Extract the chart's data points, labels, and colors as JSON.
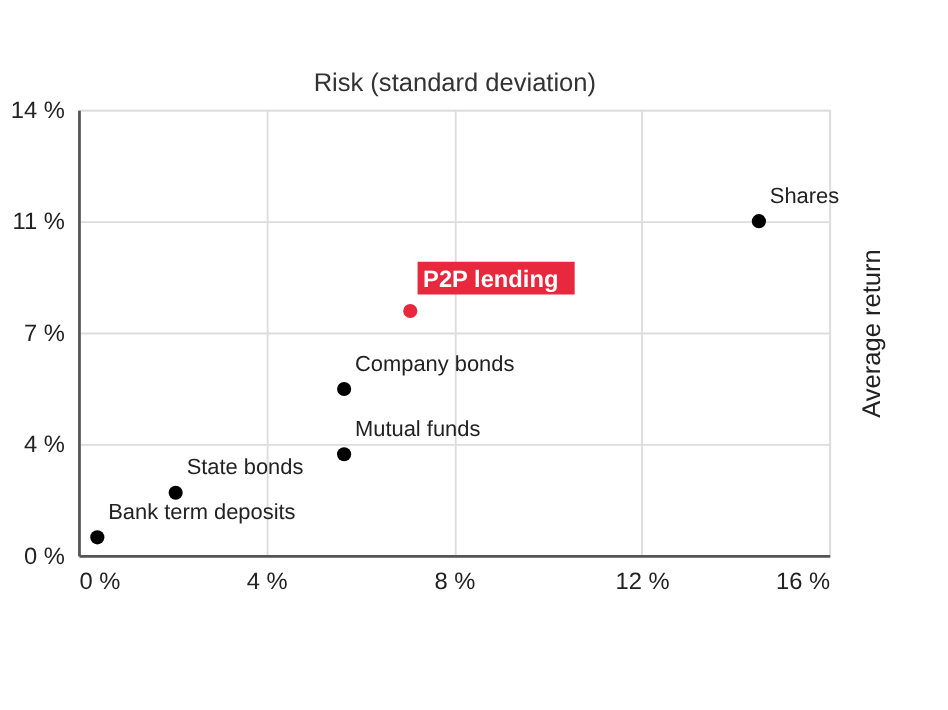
{
  "chart_data": {
    "type": "scatter",
    "xlabel": "Risk (standard deviation)",
    "ylabel": "Average return",
    "x": [
      0.4,
      2.07,
      5.66,
      5.66,
      7.07,
      14.5
    ],
    "values": [
      0.57,
      1.97,
      3.18,
      5.23,
      7.68,
      10.5
    ],
    "colors": [
      "#000000",
      "#000000",
      "#000000",
      "#000000",
      "#e8283c",
      "#000000"
    ],
    "xlim": [
      0,
      16
    ],
    "xticks": [
      {
        "value": 0,
        "label": "0 %"
      },
      {
        "value": 4,
        "label": "4 %"
      },
      {
        "value": 8,
        "label": "8 %"
      },
      {
        "value": 12,
        "label": "12 %"
      },
      {
        "value": 16,
        "label": "16 %"
      }
    ],
    "ylim": [
      0,
      14
    ],
    "yticks": [
      {
        "value": 0,
        "label": "0 %"
      },
      {
        "value": 3.5,
        "label": "4 %"
      },
      {
        "value": 7,
        "label": "7 %"
      },
      {
        "value": 10.5,
        "label": "11 %"
      },
      {
        "value": 14,
        "label": "14 %"
      }
    ],
    "annotations": [
      {
        "text": "Bank term deposits",
        "x": 0.4,
        "y": 0.57
      },
      {
        "text": "State bonds",
        "x": 2.07,
        "y": 1.97
      },
      {
        "text": "Mutual funds",
        "x": 5.66,
        "y": 3.18
      },
      {
        "text": "Company bonds",
        "x": 5.66,
        "y": 5.23
      },
      {
        "text": "P2P lending",
        "x": 7.07,
        "y": 7.68
      },
      {
        "text": "Shares",
        "x": 14.5,
        "y": 10.5
      }
    ],
    "grid": true,
    "marker": "circle"
  }
}
